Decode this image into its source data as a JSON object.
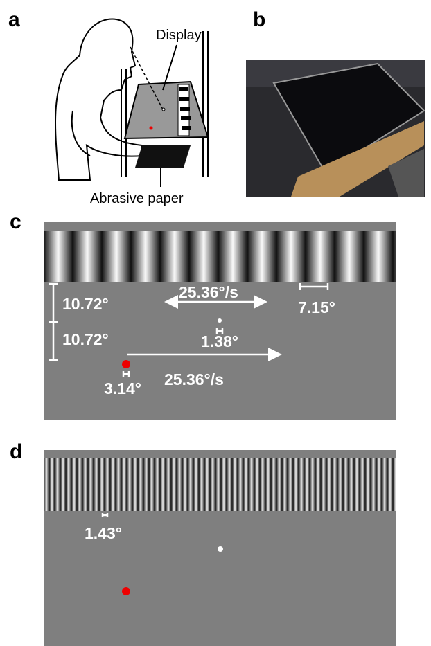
{
  "panel_a": {
    "label": "a",
    "display_label": "Display",
    "paper_label": "Abrasive paper"
  },
  "panel_b": {
    "label": "b"
  },
  "panel_c": {
    "label": "c",
    "annotations": [
      "10.72°",
      "10.72°",
      "25.36°/s",
      "7.15°",
      "1.38°",
      "25.36°/s",
      "3.14°"
    ]
  },
  "panel_d": {
    "label": "d",
    "annotations": [
      "1.43°"
    ]
  }
}
